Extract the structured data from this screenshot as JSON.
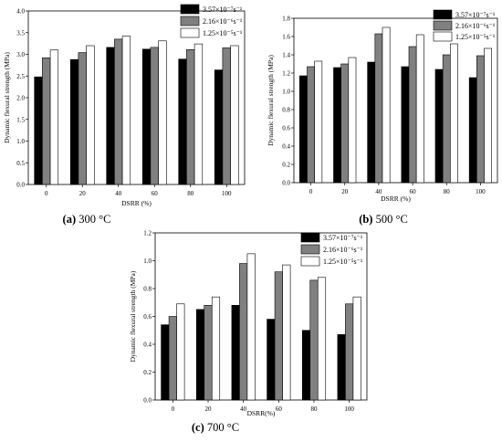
{
  "chart_data": [
    {
      "type": "bar",
      "caption_label": "(a)",
      "caption_text": " 300 °C",
      "xlabel": "DSRR (%)",
      "ylabel": "Dynamic flexural strength (MPa)",
      "categories": [
        "0",
        "20",
        "40",
        "60",
        "80",
        "100"
      ],
      "ylim": [
        0,
        4.0
      ],
      "yticks": [
        "0.0",
        "0.5",
        "1.0",
        "1.5",
        "2.0",
        "2.5",
        "3.0",
        "3.5",
        "4.0"
      ],
      "legend_position": "top-right",
      "series": [
        {
          "name": "3.57×10⁻⁷s⁻¹",
          "color": "#000000",
          "values": [
            2.48,
            2.88,
            3.16,
            3.12,
            2.89,
            2.64
          ]
        },
        {
          "name": "2.16×10⁻⁶s⁻¹",
          "color": "#808080",
          "values": [
            2.92,
            3.04,
            3.35,
            3.16,
            3.11,
            3.15
          ]
        },
        {
          "name": "1.25×10⁻⁵s⁻¹",
          "color": "#ffffff",
          "values": [
            3.1,
            3.2,
            3.42,
            3.31,
            3.24,
            3.2
          ]
        }
      ]
    },
    {
      "type": "bar",
      "caption_label": "(b)",
      "caption_text": " 500 °C",
      "xlabel": "DSRR (%)",
      "ylabel": "Dynamic flexural strength (MPa)",
      "categories": [
        "0",
        "20",
        "40",
        "60",
        "80",
        "100"
      ],
      "ylim": [
        0,
        1.8
      ],
      "yticks": [
        "0.0",
        "0.2",
        "0.4",
        "0.6",
        "0.8",
        "1.0",
        "1.2",
        "1.4",
        "1.6",
        "1.8"
      ],
      "legend_position": "top-right",
      "series": [
        {
          "name": "3.57×10⁻⁷s⁻¹",
          "color": "#000000",
          "values": [
            1.17,
            1.26,
            1.32,
            1.27,
            1.24,
            1.15
          ]
        },
        {
          "name": "2.16×10⁻⁶s⁻¹",
          "color": "#808080",
          "values": [
            1.27,
            1.3,
            1.63,
            1.49,
            1.4,
            1.39
          ]
        },
        {
          "name": "1.25×10⁻⁵s⁻¹",
          "color": "#ffffff",
          "values": [
            1.33,
            1.37,
            1.7,
            1.62,
            1.52,
            1.47
          ]
        }
      ]
    },
    {
      "type": "bar",
      "caption_label": "(c)",
      "caption_text": " 700 °C",
      "xlabel": "DSRR(%)",
      "ylabel": "Dynamic flexural strength (MPa)",
      "categories": [
        "0",
        "20",
        "40",
        "60",
        "80",
        "100"
      ],
      "ylim": [
        0,
        1.2
      ],
      "yticks": [
        "0.0",
        "0.2",
        "0.4",
        "0.6",
        "0.8",
        "1.0",
        "1.2"
      ],
      "legend_position": "top-right",
      "series": [
        {
          "name": "3.57×10⁻⁷s⁻¹",
          "color": "#000000",
          "values": [
            0.54,
            0.65,
            0.68,
            0.58,
            0.5,
            0.47
          ]
        },
        {
          "name": "2.16×10⁻⁶s⁻¹",
          "color": "#808080",
          "values": [
            0.6,
            0.68,
            0.98,
            0.92,
            0.86,
            0.69
          ]
        },
        {
          "name": "1.25×10⁻⁵s⁻¹",
          "color": "#ffffff",
          "values": [
            0.69,
            0.74,
            1.05,
            0.97,
            0.88,
            0.74
          ]
        }
      ]
    }
  ]
}
